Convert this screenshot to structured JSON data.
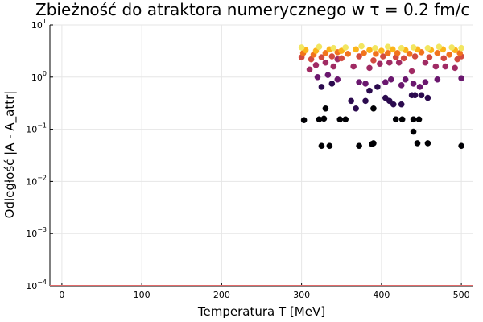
{
  "chart_data": {
    "type": "scatter",
    "title": "Zbieżność do atraktora numerycznego w τ = 0.2 fm/c",
    "xlabel": "Temperatura T [MeV]",
    "ylabel": "Odległość |A - A_attr|",
    "xlim": [
      -15,
      515
    ],
    "ylim": [
      0.0001,
      10
    ],
    "yscale": "log",
    "x_ticks": [
      0,
      100,
      200,
      300,
      400,
      500
    ],
    "y_ticks": [
      {
        "value": 0.0001,
        "base": "10",
        "exp": "−4"
      },
      {
        "value": 0.001,
        "base": "10",
        "exp": "−3"
      },
      {
        "value": 0.01,
        "base": "10",
        "exp": "−2"
      },
      {
        "value": 0.1,
        "base": "10",
        "exp": "−1"
      },
      {
        "value": 1,
        "base": "10",
        "exp": "0"
      },
      {
        "value": 10,
        "base": "10",
        "exp": "1"
      }
    ],
    "grid": true,
    "legend": "none",
    "series": [
      {
        "color": "#000004",
        "x": [
          303,
          325,
          335,
          372,
          388,
          390,
          440,
          445,
          458,
          500,
          322,
          330,
          328,
          348,
          355,
          390,
          418,
          426,
          440,
          447
        ],
        "y": [
          0.15,
          0.048,
          0.048,
          0.048,
          0.052,
          0.054,
          0.09,
          0.054,
          0.054,
          0.048,
          0.155,
          0.25,
          0.16,
          0.155,
          0.155,
          0.25,
          0.155,
          0.155,
          0.155,
          0.155
        ]
      },
      {
        "color": "#2b0a4e",
        "x": [
          325,
          338,
          362,
          368,
          380,
          385,
          395,
          405,
          410,
          415,
          425,
          438,
          442,
          450,
          458
        ],
        "y": [
          0.65,
          0.75,
          0.35,
          0.25,
          0.35,
          0.55,
          0.65,
          0.4,
          0.35,
          0.3,
          0.3,
          0.45,
          0.45,
          0.45,
          0.4
        ]
      },
      {
        "color": "#6a176e",
        "x": [
          320,
          333,
          345,
          372,
          380,
          405,
          412,
          425,
          430,
          440,
          448,
          455,
          470,
          500
        ],
        "y": [
          1.0,
          1.1,
          0.9,
          0.8,
          0.75,
          0.8,
          0.9,
          0.7,
          0.9,
          0.75,
          0.65,
          0.8,
          0.9,
          0.95
        ]
      },
      {
        "color": "#a02a63",
        "x": [
          310,
          318,
          330,
          340,
          345,
          365,
          385,
          398,
          410,
          422,
          438,
          455,
          468,
          480,
          492
        ],
        "y": [
          1.4,
          1.7,
          1.9,
          1.6,
          2.2,
          1.6,
          1.5,
          1.8,
          1.9,
          1.9,
          1.3,
          1.9,
          1.6,
          1.6,
          1.5
        ]
      },
      {
        "color": "#d24b40",
        "x": [
          300,
          312,
          325,
          338,
          350,
          372,
          390,
          402,
          418,
          428,
          442,
          460,
          478,
          495,
          500
        ],
        "y": [
          2.4,
          2.2,
          2.4,
          2.5,
          2.3,
          2.5,
          2.1,
          2.5,
          2.4,
          2.3,
          2.5,
          2.4,
          2.3,
          2.2,
          2.5
        ]
      },
      {
        "color": "#f1731d",
        "x": [
          302,
          315,
          330,
          345,
          358,
          378,
          393,
          408,
          420,
          435,
          450,
          470,
          485,
          498
        ],
        "y": [
          2.9,
          2.7,
          2.9,
          3.0,
          2.8,
          2.9,
          2.8,
          2.9,
          2.9,
          2.8,
          3.0,
          2.9,
          2.7,
          2.9
        ]
      },
      {
        "color": "#fbb41a",
        "x": [
          305,
          318,
          335,
          350,
          368,
          385,
          400,
          414,
          430,
          445,
          462,
          477,
          492
        ],
        "y": [
          3.3,
          3.2,
          3.4,
          3.2,
          3.4,
          3.3,
          3.2,
          3.4,
          3.3,
          3.4,
          3.3,
          3.4,
          3.3
        ]
      },
      {
        "color": "#f2e661",
        "x": [
          300,
          322,
          340,
          355,
          375,
          392,
          408,
          425,
          440,
          458,
          472,
          488,
          500
        ],
        "y": [
          3.7,
          3.8,
          3.6,
          3.7,
          3.9,
          3.6,
          3.8,
          3.6,
          3.7,
          3.6,
          3.8,
          3.7,
          3.6
        ]
      }
    ],
    "baseline": {
      "y": 0.0001,
      "color": "#e26a6a"
    }
  }
}
